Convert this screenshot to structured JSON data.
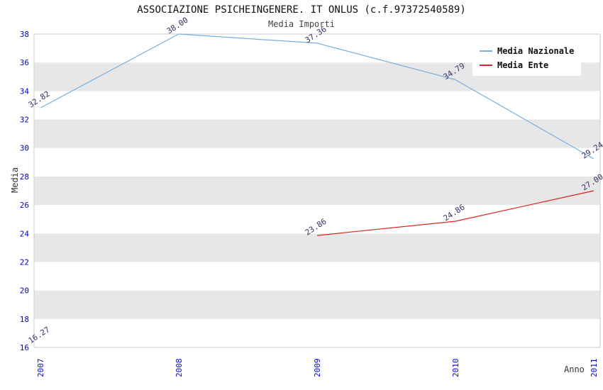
{
  "chart_data": {
    "type": "line",
    "title": "ASSOCIAZIONE PSICHEINGENERE. IT ONLUS (c.f.97372540589)",
    "subtitle": "Media Importi",
    "xlabel": "Anno",
    "ylabel": "Media",
    "x": [
      2007,
      2008,
      2009,
      2010,
      2011
    ],
    "series": [
      {
        "name": "Media Nazionale",
        "color": "#7aaede",
        "values": [
          32.82,
          38.0,
          37.36,
          34.79,
          29.24
        ]
      },
      {
        "name": "Media Ente",
        "color": "#dd2222",
        "values": [
          16.27,
          null,
          23.86,
          24.86,
          27.0
        ]
      }
    ],
    "ylim": [
      16,
      38
    ],
    "ytick_step": 2,
    "grid": "alternating-bands",
    "legend_position": "top-right",
    "band_color": "#e7e7e7",
    "plot_border_color": "#cccccc",
    "tick_label_color": "#0000cc",
    "value_label_color": "#333366"
  }
}
